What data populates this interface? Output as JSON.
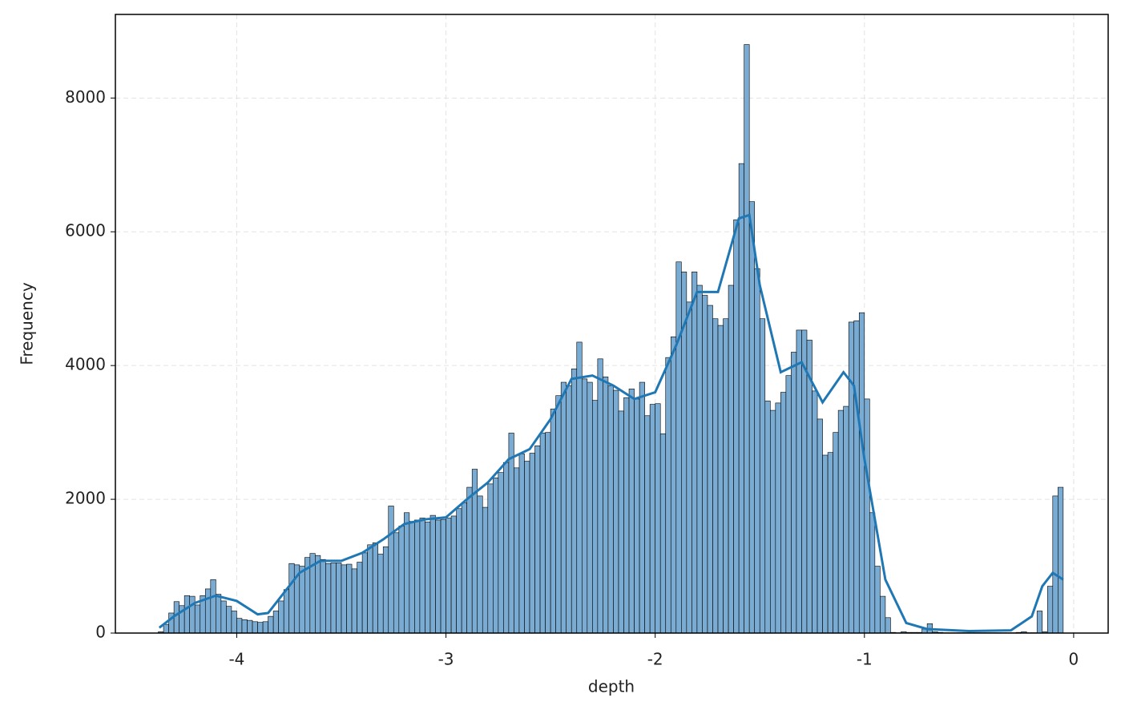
{
  "chart_data": {
    "type": "histogram",
    "xlabel": "depth",
    "ylabel": "Frequency",
    "bins": [
      -4.375,
      -4.35,
      -4.325,
      -4.3,
      -4.275,
      -4.25,
      -4.225,
      -4.2,
      -4.175,
      -4.15,
      -4.125,
      -4.1,
      -4.075,
      -4.05,
      -4.025,
      -4,
      -3.975,
      -3.95,
      -3.925,
      -3.9,
      -3.875,
      -3.85,
      -3.825,
      -3.8,
      -3.775,
      -3.75,
      -3.725,
      -3.7,
      -3.675,
      -3.65,
      -3.625,
      -3.6,
      -3.575,
      -3.55,
      -3.525,
      -3.5,
      -3.475,
      -3.45,
      -3.425,
      -3.4,
      -3.375,
      -3.35,
      -3.325,
      -3.3,
      -3.275,
      -3.25,
      -3.225,
      -3.2,
      -3.175,
      -3.15,
      -3.125,
      -3.1,
      -3.075,
      -3.05,
      -3.025,
      -3,
      -2.975,
      -2.95,
      -2.925,
      -2.9,
      -2.875,
      -2.85,
      -2.825,
      -2.8,
      -2.775,
      -2.75,
      -2.725,
      -2.7,
      -2.675,
      -2.65,
      -2.625,
      -2.6,
      -2.575,
      -2.55,
      -2.525,
      -2.5,
      -2.475,
      -2.45,
      -2.425,
      -2.4,
      -2.375,
      -2.35,
      -2.325,
      -2.3,
      -2.275,
      -2.25,
      -2.225,
      -2.2,
      -2.175,
      -2.15,
      -2.125,
      -2.1,
      -2.075,
      -2.05,
      -2.025,
      -2,
      -1.975,
      -1.95,
      -1.925,
      -1.9,
      -1.875,
      -1.85,
      -1.825,
      -1.8,
      -1.775,
      -1.75,
      -1.725,
      -1.7,
      -1.675,
      -1.65,
      -1.625,
      -1.6,
      -1.575,
      -1.55,
      -1.525,
      -1.5,
      -1.475,
      -1.45,
      -1.425,
      -1.4,
      -1.375,
      -1.35,
      -1.325,
      -1.3,
      -1.275,
      -1.25,
      -1.225,
      -1.2,
      -1.175,
      -1.15,
      -1.125,
      -1.1,
      -1.075,
      -1.05,
      -1.025,
      -1,
      -0.975,
      -0.95,
      -0.925,
      -0.9,
      -0.875,
      -0.85,
      -0.825,
      -0.8,
      -0.775,
      -0.75,
      -0.725,
      -0.7,
      -0.675,
      -0.65,
      -0.625,
      -0.6,
      -0.575,
      -0.55,
      -0.525,
      -0.5,
      -0.475,
      -0.45,
      -0.425,
      -0.4,
      -0.375,
      -0.35,
      -0.325,
      -0.3,
      -0.275,
      -0.25,
      -0.225,
      -0.2,
      -0.175,
      -0.15,
      -0.125,
      -0.1,
      -0.075,
      -0.05
    ],
    "values": [
      20,
      130,
      300,
      470,
      410,
      560,
      550,
      420,
      560,
      660,
      800,
      580,
      480,
      400,
      330,
      220,
      200,
      190,
      170,
      160,
      170,
      250,
      330,
      480,
      650,
      1040,
      1020,
      1000,
      1130,
      1190,
      1160,
      1100,
      1040,
      1050,
      1050,
      1020,
      1030,
      960,
      1060,
      1200,
      1320,
      1350,
      1180,
      1290,
      1900,
      1500,
      1600,
      1800,
      1670,
      1690,
      1720,
      1660,
      1760,
      1690,
      1700,
      1720,
      1750,
      1860,
      1950,
      2180,
      2450,
      2050,
      1880,
      2230,
      2320,
      2400,
      2550,
      2990,
      2470,
      2680,
      2570,
      2690,
      2800,
      2990,
      3000,
      3350,
      3550,
      3750,
      3700,
      3950,
      4350,
      3800,
      3750,
      3480,
      4100,
      3830,
      3700,
      3630,
      3320,
      3520,
      3650,
      3500,
      3750,
      3250,
      3420,
      3430,
      2980,
      4120,
      4430,
      5550,
      5400,
      4950,
      5400,
      5200,
      5050,
      4900,
      4700,
      4600,
      4700,
      5200,
      6180,
      7020,
      8800,
      6450,
      5450,
      4700,
      3470,
      3330,
      3440,
      3600,
      3850,
      4200,
      4530,
      4530,
      4380,
      3620,
      3200,
      2660,
      2700,
      3000,
      3330,
      3390,
      4650,
      4670,
      4790,
      3500,
      1800,
      1000,
      550,
      230,
      10,
      5,
      20,
      10,
      10,
      10,
      60,
      140,
      20,
      10,
      5,
      5,
      5,
      5,
      5,
      5,
      5,
      5,
      5,
      5,
      5,
      5,
      5,
      5,
      10,
      20,
      5,
      5,
      330,
      20,
      700,
      2050,
      2180
    ],
    "color": "#7aabd2",
    "edgecolor": "#000000",
    "kde": {
      "color": "#1f77b4",
      "x": [
        -4.37,
        -4.3,
        -4.2,
        -4.1,
        -4,
        -3.9,
        -3.85,
        -3.8,
        -3.7,
        -3.6,
        -3.5,
        -3.4,
        -3.3,
        -3.2,
        -3.1,
        -3,
        -2.9,
        -2.8,
        -2.7,
        -2.6,
        -2.5,
        -2.4,
        -2.3,
        -2.2,
        -2.1,
        -2,
        -1.9,
        -1.8,
        -1.7,
        -1.6,
        -1.55,
        -1.5,
        -1.4,
        -1.3,
        -1.2,
        -1.1,
        -1.05,
        -1,
        -0.9,
        -0.8,
        -0.7,
        -0.5,
        -0.3,
        -0.2,
        -0.15,
        -0.1,
        -0.05
      ],
      "values": [
        80,
        250,
        450,
        560,
        480,
        280,
        300,
        500,
        900,
        1080,
        1080,
        1200,
        1400,
        1630,
        1700,
        1730,
        2000,
        2250,
        2600,
        2750,
        3200,
        3800,
        3850,
        3700,
        3500,
        3600,
        4300,
        5100,
        5100,
        6200,
        6250,
        5200,
        3900,
        4050,
        3450,
        3900,
        3700,
        2600,
        800,
        150,
        60,
        30,
        40,
        250,
        700,
        900,
        800
      ]
    },
    "xlim": [
      -4.58,
      0.165
    ],
    "ylim": [
      0,
      9250
    ],
    "xticks": [
      -4,
      -3,
      -2,
      -1,
      0
    ],
    "yticks": [
      0,
      2000,
      4000,
      6000,
      8000
    ],
    "grid": true
  }
}
